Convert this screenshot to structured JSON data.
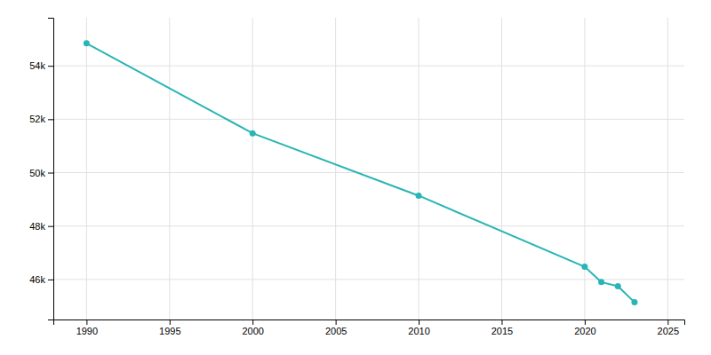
{
  "chart_data": {
    "type": "line",
    "x": [
      1990,
      2000,
      2010,
      2020,
      2021,
      2022,
      2023
    ],
    "values": [
      54844,
      51475,
      49138,
      46476,
      45901,
      45747,
      45144
    ],
    "color": "#2ab5b5",
    "marker": "circle",
    "xlim": [
      1988,
      2026
    ],
    "ylim": [
      44500,
      55800
    ],
    "xticks": [
      1990,
      1995,
      2000,
      2005,
      2010,
      2015,
      2020,
      2025
    ],
    "yticks": [
      {
        "value": 46000,
        "label": "46k"
      },
      {
        "value": 48000,
        "label": "48k"
      },
      {
        "value": 50000,
        "label": "50k"
      },
      {
        "value": 52000,
        "label": "52k"
      },
      {
        "value": 54000,
        "label": "54k"
      }
    ],
    "grid": true
  }
}
